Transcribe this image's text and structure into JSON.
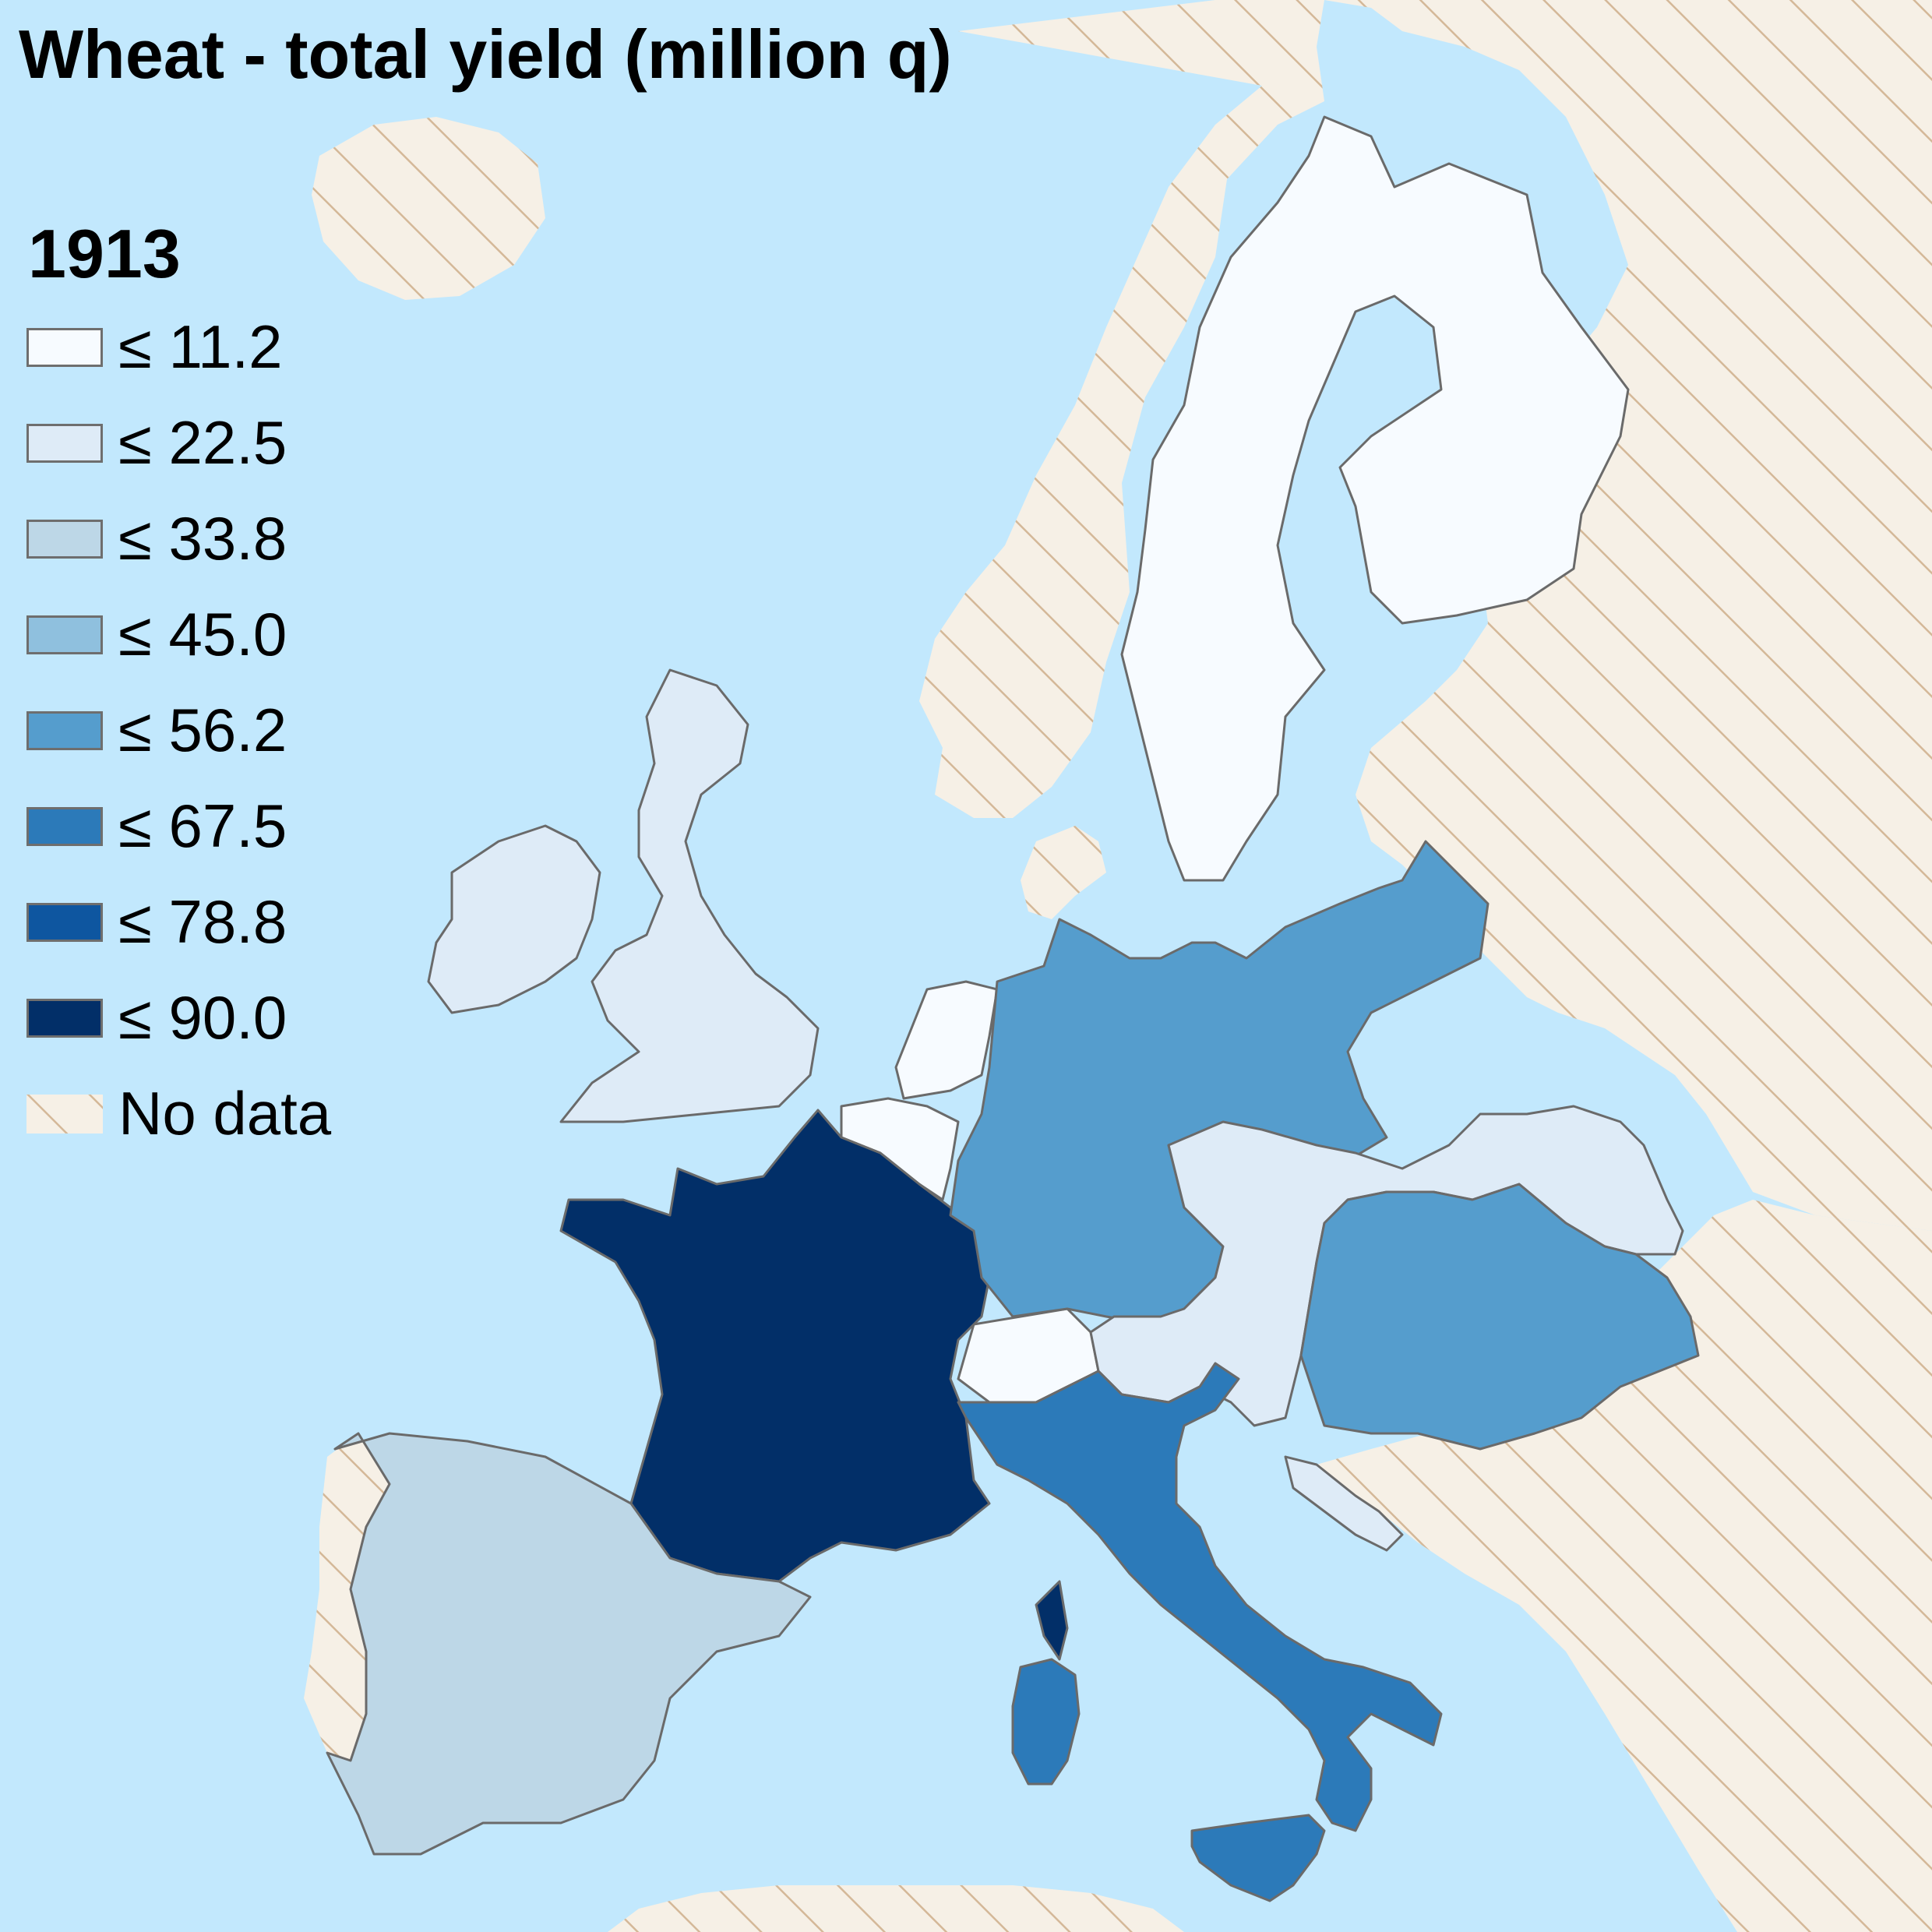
{
  "title": "Wheat - total yield (million q)",
  "legend": {
    "year": "1913",
    "classes": [
      {
        "label": "≤ 11.2",
        "max": 11.2,
        "color": "#f7fbff"
      },
      {
        "label": "≤ 22.5",
        "max": 22.5,
        "color": "#deebf7"
      },
      {
        "label": "≤ 33.8",
        "max": 33.8,
        "color": "#bdd7e7"
      },
      {
        "label": "≤ 45.0",
        "max": 45.0,
        "color": "#8fc0de"
      },
      {
        "label": "≤ 56.2",
        "max": 56.2,
        "color": "#559dcd"
      },
      {
        "label": "≤ 67.5",
        "max": 67.5,
        "color": "#2c7ab9"
      },
      {
        "label": "≤ 78.8",
        "max": 78.8,
        "color": "#0e56a0"
      },
      {
        "label": "≤ 90.0",
        "max": 90.0,
        "color": "#022f68"
      }
    ],
    "no_data_label": "No data",
    "no_data_color": "#f6f0e6",
    "no_data_hatch_color": "#d4b898"
  },
  "colors": {
    "sea": "#c2e8fd",
    "border": "#6a6a6a"
  },
  "regions": [
    {
      "id": "france",
      "class": "≤ 90.0"
    },
    {
      "id": "corsica",
      "class": "≤ 90.0"
    },
    {
      "id": "italy",
      "class": "≤ 67.5"
    },
    {
      "id": "sardinia",
      "class": "≤ 67.5"
    },
    {
      "id": "sicily",
      "class": "≤ 67.5"
    },
    {
      "id": "germany",
      "class": "≤ 56.2"
    },
    {
      "id": "hungary",
      "class": "≤ 56.2"
    },
    {
      "id": "spain",
      "class": "≤ 33.8"
    },
    {
      "id": "united-kingdom",
      "class": "≤ 22.5"
    },
    {
      "id": "ireland",
      "class": "≤ 22.5"
    },
    {
      "id": "austria",
      "class": "≤ 22.5"
    },
    {
      "id": "dalmatia",
      "class": "≤ 22.5"
    },
    {
      "id": "sweden-finland",
      "class": "≤ 11.2"
    },
    {
      "id": "netherlands",
      "class": "≤ 11.2"
    },
    {
      "id": "belgium",
      "class": "≤ 11.2"
    },
    {
      "id": "switzerland",
      "class": "≤ 11.2"
    },
    {
      "id": "norway",
      "class": "No data"
    },
    {
      "id": "russia",
      "class": "No data"
    },
    {
      "id": "balkans",
      "class": "No data"
    },
    {
      "id": "portugal",
      "class": "No data"
    },
    {
      "id": "denmark",
      "class": "No data"
    },
    {
      "id": "iceland",
      "class": "No data"
    },
    {
      "id": "north-africa",
      "class": "No data"
    },
    {
      "id": "turkey",
      "class": "No data"
    }
  ]
}
